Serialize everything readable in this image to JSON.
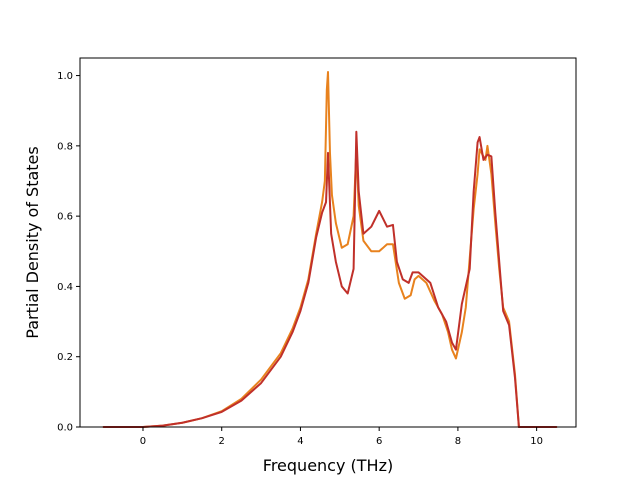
{
  "chart_data": {
    "type": "line",
    "title": "",
    "xlabel": "Frequency (THz)",
    "ylabel": "Partial Density of States",
    "xlim": [
      -1.6,
      11.0
    ],
    "ylim": [
      0.0,
      1.05
    ],
    "x_ticks": [
      0,
      2,
      4,
      6,
      8,
      10
    ],
    "y_ticks": [
      0.0,
      0.2,
      0.4,
      0.6,
      0.8,
      1.0
    ],
    "x_tick_labels": [
      "0",
      "2",
      "4",
      "6",
      "8",
      "10"
    ],
    "y_tick_labels": [
      "0.0",
      "0.2",
      "0.4",
      "0.6",
      "0.8",
      "1.0"
    ],
    "grid": false,
    "legend": "none",
    "series": [
      {
        "color": "#e8821e",
        "points": [
          [
            -1.0,
            0.0
          ],
          [
            0.0,
            0.0
          ],
          [
            0.5,
            0.004
          ],
          [
            1.0,
            0.012
          ],
          [
            1.5,
            0.025
          ],
          [
            2.0,
            0.045
          ],
          [
            2.5,
            0.08
          ],
          [
            3.0,
            0.135
          ],
          [
            3.5,
            0.21
          ],
          [
            3.8,
            0.28
          ],
          [
            4.0,
            0.34
          ],
          [
            4.2,
            0.42
          ],
          [
            4.4,
            0.55
          ],
          [
            4.55,
            0.64
          ],
          [
            4.62,
            0.7
          ],
          [
            4.67,
            0.96
          ],
          [
            4.7,
            1.01
          ],
          [
            4.75,
            0.78
          ],
          [
            4.8,
            0.66
          ],
          [
            4.9,
            0.58
          ],
          [
            5.05,
            0.51
          ],
          [
            5.2,
            0.52
          ],
          [
            5.35,
            0.6
          ],
          [
            5.42,
            0.79
          ],
          [
            5.48,
            0.63
          ],
          [
            5.6,
            0.53
          ],
          [
            5.8,
            0.5
          ],
          [
            6.0,
            0.5
          ],
          [
            6.2,
            0.52
          ],
          [
            6.35,
            0.52
          ],
          [
            6.5,
            0.41
          ],
          [
            6.65,
            0.365
          ],
          [
            6.8,
            0.375
          ],
          [
            6.9,
            0.42
          ],
          [
            7.0,
            0.43
          ],
          [
            7.2,
            0.41
          ],
          [
            7.4,
            0.36
          ],
          [
            7.6,
            0.32
          ],
          [
            7.75,
            0.27
          ],
          [
            7.85,
            0.22
          ],
          [
            7.95,
            0.195
          ],
          [
            8.1,
            0.27
          ],
          [
            8.2,
            0.34
          ],
          [
            8.3,
            0.48
          ],
          [
            8.4,
            0.62
          ],
          [
            8.5,
            0.72
          ],
          [
            8.55,
            0.79
          ],
          [
            8.6,
            0.78
          ],
          [
            8.7,
            0.76
          ],
          [
            8.75,
            0.8
          ],
          [
            8.85,
            0.72
          ],
          [
            8.95,
            0.58
          ],
          [
            9.05,
            0.45
          ],
          [
            9.15,
            0.34
          ],
          [
            9.3,
            0.3
          ],
          [
            9.45,
            0.15
          ],
          [
            9.55,
            0.0
          ],
          [
            10.5,
            0.0
          ]
        ]
      },
      {
        "color": "#c0302a",
        "points": [
          [
            -1.0,
            0.0
          ],
          [
            0.0,
            0.0
          ],
          [
            0.5,
            0.004
          ],
          [
            1.0,
            0.012
          ],
          [
            1.5,
            0.025
          ],
          [
            2.0,
            0.043
          ],
          [
            2.5,
            0.075
          ],
          [
            3.0,
            0.125
          ],
          [
            3.5,
            0.2
          ],
          [
            3.8,
            0.27
          ],
          [
            4.0,
            0.33
          ],
          [
            4.2,
            0.41
          ],
          [
            4.4,
            0.54
          ],
          [
            4.55,
            0.61
          ],
          [
            4.65,
            0.64
          ],
          [
            4.7,
            0.78
          ],
          [
            4.78,
            0.55
          ],
          [
            4.9,
            0.47
          ],
          [
            5.05,
            0.4
          ],
          [
            5.2,
            0.38
          ],
          [
            5.35,
            0.45
          ],
          [
            5.42,
            0.84
          ],
          [
            5.48,
            0.67
          ],
          [
            5.6,
            0.55
          ],
          [
            5.8,
            0.57
          ],
          [
            6.0,
            0.615
          ],
          [
            6.2,
            0.57
          ],
          [
            6.35,
            0.575
          ],
          [
            6.45,
            0.47
          ],
          [
            6.6,
            0.42
          ],
          [
            6.75,
            0.41
          ],
          [
            6.85,
            0.44
          ],
          [
            7.0,
            0.44
          ],
          [
            7.3,
            0.41
          ],
          [
            7.5,
            0.34
          ],
          [
            7.7,
            0.3
          ],
          [
            7.85,
            0.24
          ],
          [
            7.95,
            0.22
          ],
          [
            8.1,
            0.35
          ],
          [
            8.3,
            0.45
          ],
          [
            8.4,
            0.67
          ],
          [
            8.5,
            0.81
          ],
          [
            8.55,
            0.825
          ],
          [
            8.65,
            0.76
          ],
          [
            8.75,
            0.775
          ],
          [
            8.85,
            0.77
          ],
          [
            8.95,
            0.61
          ],
          [
            9.05,
            0.47
          ],
          [
            9.15,
            0.33
          ],
          [
            9.3,
            0.29
          ],
          [
            9.45,
            0.14
          ],
          [
            9.55,
            0.0
          ],
          [
            10.5,
            0.0
          ]
        ]
      }
    ]
  }
}
